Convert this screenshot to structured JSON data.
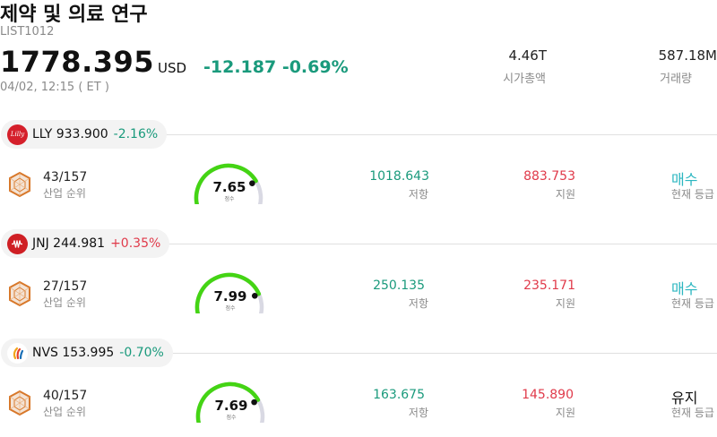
{
  "header": {
    "title": "제약 및 의료 연구",
    "list_id": "LIST1012",
    "price": "1778.395",
    "currency": "USD",
    "change": "-12.187 -0.69%",
    "timestamp": "04/02, 12:15 ( ET )",
    "market_cap": {
      "value": "4.46T",
      "label": "시가총액"
    },
    "volume": {
      "value": "587.18M",
      "label": "거래량"
    }
  },
  "colors": {
    "up": "#e03a4a",
    "down": "#1a9a7c",
    "buy": "#2bb6c0",
    "gauge": "#44d414",
    "gauge_track": "#d9d9e3"
  },
  "stocks": [
    {
      "symbol_price": "LLY 933.900",
      "change": "-2.16%",
      "direction": "down",
      "logo_icon": "lilly-logo-icon",
      "rank": "43/157",
      "rank_label": "산업 순위",
      "score": "7.65",
      "score_value": 7.65,
      "score_label": "점수",
      "resistance": "1018.643",
      "resistance_label": "저항",
      "support": "883.753",
      "support_label": "지원",
      "rating": "매수",
      "rating_type": "buy",
      "rating_label": "현재 등급"
    },
    {
      "symbol_price": "JNJ 244.981",
      "change": "+0.35%",
      "direction": "up",
      "logo_icon": "jnj-logo-icon",
      "rank": "27/157",
      "rank_label": "산업 순위",
      "score": "7.99",
      "score_value": 7.99,
      "score_label": "점수",
      "resistance": "250.135",
      "resistance_label": "저항",
      "support": "235.171",
      "support_label": "지원",
      "rating": "매수",
      "rating_type": "buy",
      "rating_label": "현재 등급"
    },
    {
      "symbol_price": "NVS 153.995",
      "change": "-0.70%",
      "direction": "down",
      "logo_icon": "novartis-logo-icon",
      "rank": "40/157",
      "rank_label": "산업 순위",
      "score": "7.69",
      "score_value": 7.69,
      "score_label": "점수",
      "resistance": "163.675",
      "resistance_label": "저항",
      "support": "145.890",
      "support_label": "지원",
      "rating": "유지",
      "rating_type": "hold",
      "rating_label": "현재 등급"
    }
  ]
}
